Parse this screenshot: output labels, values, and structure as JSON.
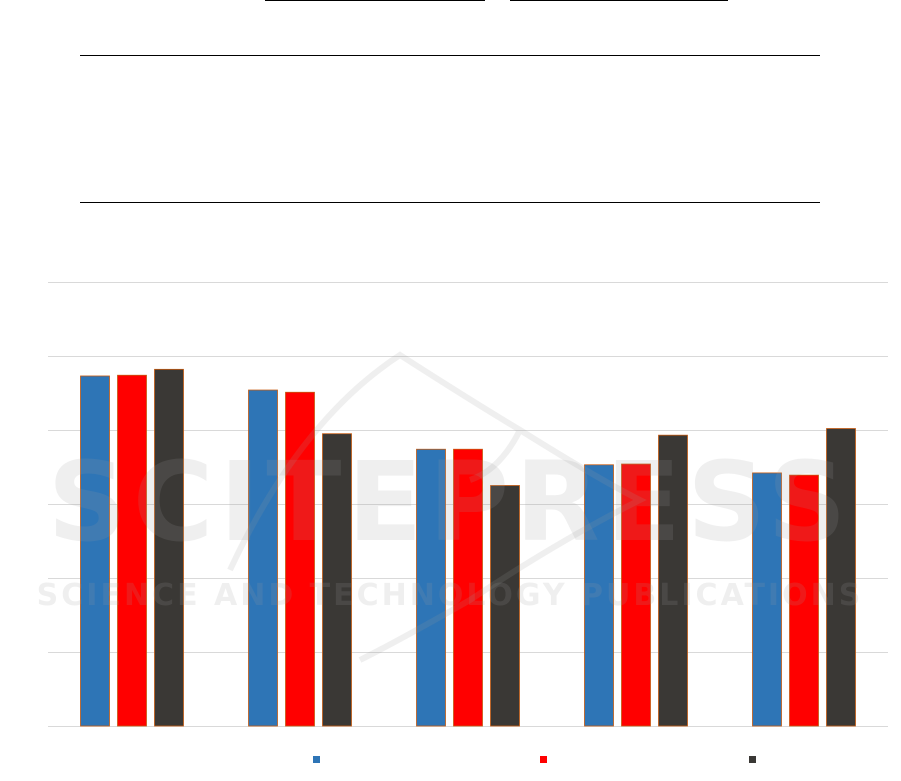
{
  "chart_data": {
    "type": "bar",
    "categories": [
      "",
      "",
      "",
      "",
      ""
    ],
    "ylim": [
      0,
      6
    ],
    "grid": true,
    "legend_position": "bottom",
    "series": [
      {
        "name": "",
        "color": "#2E75B6",
        "values": [
          4.73,
          4.54,
          3.74,
          3.53,
          3.42
        ]
      },
      {
        "name": "",
        "color": "#FF0000",
        "values": [
          4.74,
          4.51,
          3.74,
          3.54,
          3.39
        ]
      },
      {
        "name": "",
        "color": "#3A3835",
        "values": [
          4.82,
          3.95,
          3.25,
          3.93,
          4.02
        ]
      }
    ],
    "bar_border_color": "#C55A11",
    "grid_color": "#D9D9D9"
  },
  "watermark": {
    "text_main": "SCITEPRESS",
    "text_sub": "SCIENCE AND TECHNOLOGY PUBLICATIONS",
    "color": "#9E9E9E"
  },
  "page": {
    "background": "#FFFFFF",
    "rule_color": "#000000"
  }
}
